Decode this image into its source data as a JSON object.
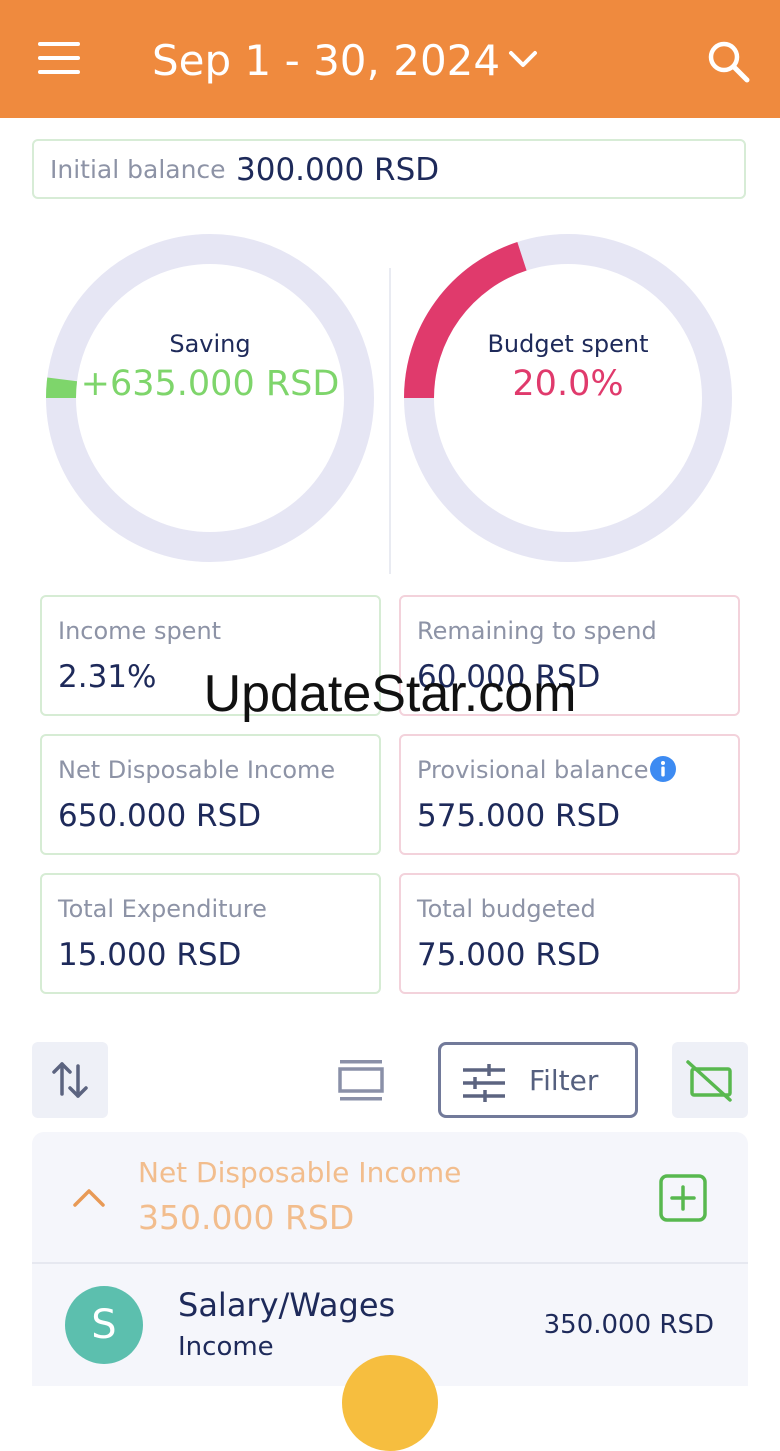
{
  "header": {
    "date_range": "Sep 1 - 30, 2024",
    "background_color": "#ef8a3e"
  },
  "initial_balance": {
    "label": "Initial balance",
    "value": "300.000 RSD"
  },
  "saving_donut": {
    "label": "Saving",
    "value": "+635.000 RSD",
    "fill_fraction": 0.02,
    "color": "#7ed56b",
    "track_color": "#e6e6f4"
  },
  "budget_donut": {
    "label": "Budget spent",
    "value": "20.0%",
    "fill_fraction": 0.2,
    "color": "#e03a6c",
    "track_color": "#e6e6f4"
  },
  "cards": {
    "income_spent": {
      "label": "Income spent",
      "value": "2.31%"
    },
    "remaining_to_spend": {
      "label": "Remaining to spend",
      "value": "60.000 RSD"
    },
    "net_disposable_income": {
      "label": "Net Disposable Income",
      "value": "650.000 RSD"
    },
    "provisional_balance": {
      "label": "Provisional balance",
      "value": "575.000 RSD"
    },
    "total_expenditure": {
      "label": "Total Expenditure",
      "value": "15.000 RSD"
    },
    "total_budgeted": {
      "label": "Total budgeted",
      "value": "75.000 RSD"
    }
  },
  "watermark": "UpdateStar.com",
  "toolbar": {
    "filter_label": "Filter"
  },
  "group": {
    "title": "Net Disposable Income",
    "total": "350.000 RSD",
    "color": "#f2bd8d"
  },
  "transactions": [
    {
      "avatar_letter": "S",
      "name": "Salary/Wages",
      "category": "Income",
      "amount": "350.000 RSD",
      "avatar_color": "#5cbfae"
    }
  ],
  "icons": {
    "menu": "hamburger-icon",
    "dropdown": "chevron-down-icon",
    "search": "search-icon",
    "info": "info-icon",
    "sort": "sort-arrows-icon",
    "view": "view-layout-icon",
    "filter": "sliders-icon",
    "card_toggle": "card-off-icon",
    "collapse": "chevron-up-icon",
    "add": "add-square-icon"
  }
}
